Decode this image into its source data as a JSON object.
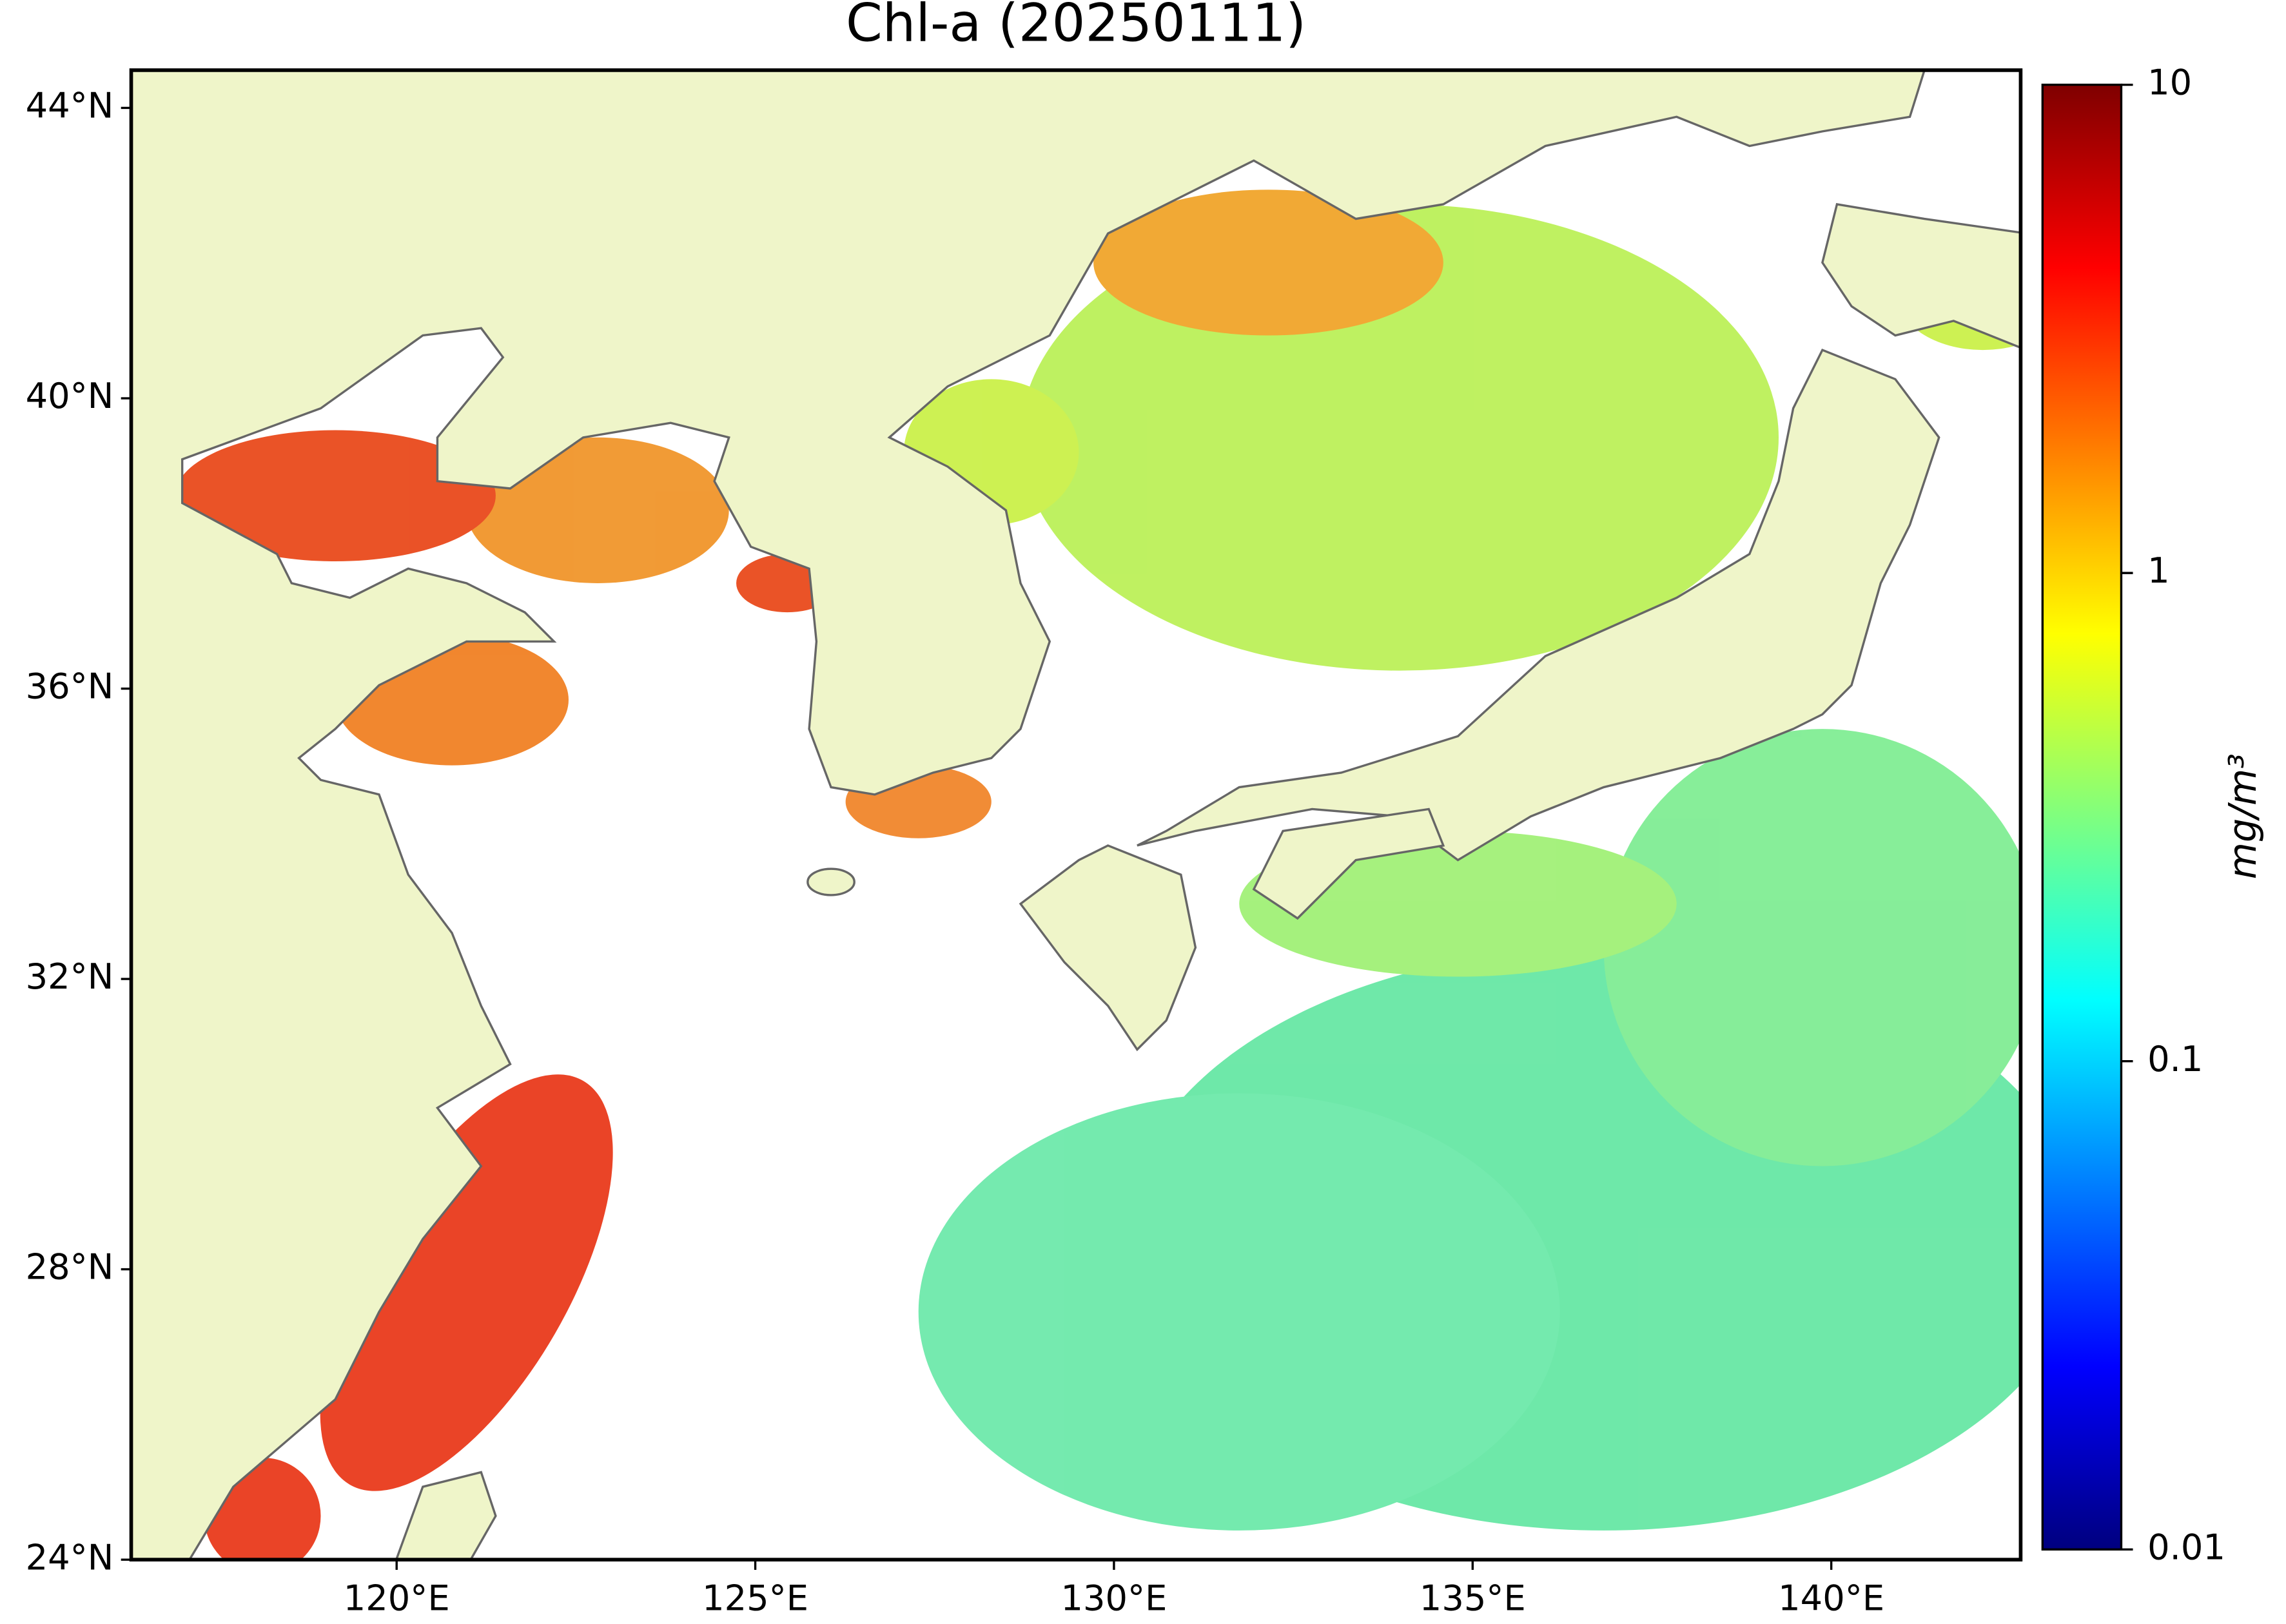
{
  "chart_data": {
    "type": "map",
    "title": "Chl-a (20250111)",
    "xlim": [
      116.3,
      142.64
    ],
    "ylim": [
      24,
      44.52
    ],
    "xticks": [
      {
        "value": 120,
        "label": "120°E"
      },
      {
        "value": 125,
        "label": "125°E"
      },
      {
        "value": 130,
        "label": "130°E"
      },
      {
        "value": 135,
        "label": "135°E"
      },
      {
        "value": 140,
        "label": "140°E"
      }
    ],
    "yticks": [
      {
        "value": 24,
        "label": "24°N"
      },
      {
        "value": 28,
        "label": "28°N"
      },
      {
        "value": 32,
        "label": "32°N"
      },
      {
        "value": 36,
        "label": "36°N"
      },
      {
        "value": 40,
        "label": "40°N"
      },
      {
        "value": 44,
        "label": "44°N"
      }
    ],
    "colorbar": {
      "label": "mg/m³",
      "scale": "log",
      "colormap": "jet",
      "lim": [
        0.01,
        10
      ],
      "ticks": [
        0.01,
        0.1,
        1,
        10
      ]
    }
  }
}
